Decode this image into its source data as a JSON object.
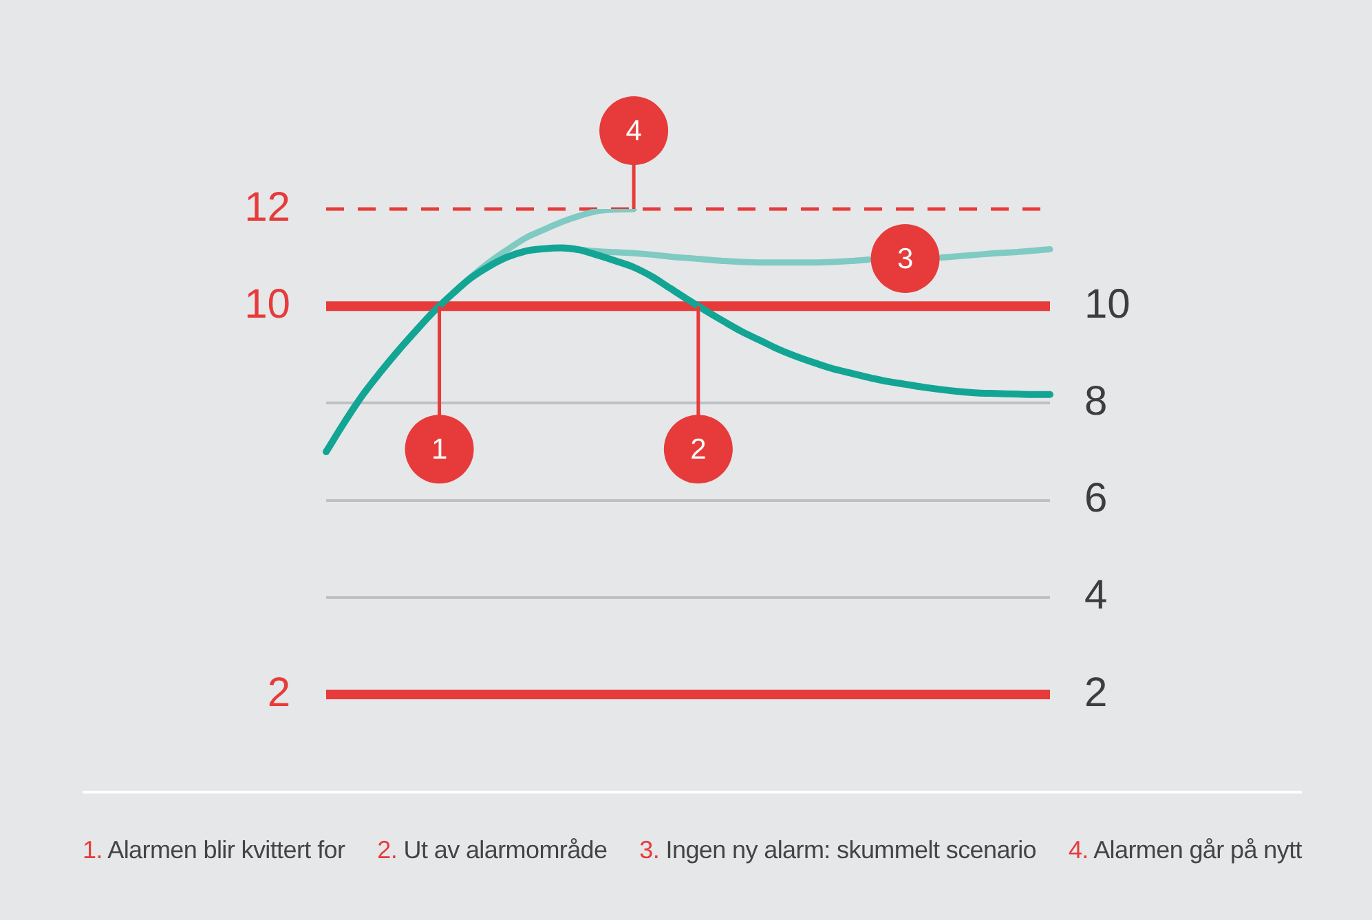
{
  "chart_data": {
    "type": "line",
    "categories": [
      null,
      null,
      null,
      null,
      null,
      null,
      null,
      null,
      null,
      null,
      null,
      null,
      null,
      null,
      null,
      null,
      null,
      null,
      null,
      null,
      null,
      null,
      null,
      null,
      null,
      null,
      null,
      null,
      null,
      null,
      null,
      null,
      null,
      null,
      null,
      null,
      null,
      null,
      null,
      null,
      null
    ],
    "series": [
      {
        "color": "#12a594",
        "values": [
          7.0,
          7.6,
          8.16,
          8.64,
          9.09,
          9.51,
          9.91,
          10.26,
          10.58,
          10.82,
          11.01,
          11.13,
          11.18,
          11.2,
          11.16,
          11.05,
          10.93,
          10.8,
          10.61,
          10.37,
          10.13,
          9.9,
          9.68,
          9.47,
          9.29,
          9.11,
          8.96,
          8.83,
          8.71,
          8.62,
          8.53,
          8.45,
          8.39,
          8.33,
          8.28,
          8.24,
          8.21,
          8.2,
          8.19,
          8.18,
          8.18
        ]
      },
      {
        "color": "#7fcac3",
        "values": [
          null,
          null,
          null,
          null,
          null,
          null,
          null,
          10.26,
          10.6,
          10.9,
          11.16,
          11.4,
          11.57,
          11.73,
          11.86,
          11.96,
          11.99,
          12,
          null,
          null,
          null,
          null,
          null,
          null,
          null,
          null,
          null,
          null,
          null,
          null,
          null,
          null,
          null,
          null,
          null,
          null,
          null,
          null,
          null,
          null,
          null
        ]
      },
      {
        "color": "#7fcac3",
        "values": [
          null,
          null,
          null,
          null,
          null,
          null,
          null,
          null,
          null,
          null,
          null,
          null,
          null,
          11.2,
          11.16,
          11.13,
          11.11,
          11.09,
          11.06,
          11.02,
          10.99,
          10.96,
          10.93,
          10.91,
          10.9,
          10.9,
          10.9,
          10.9,
          10.91,
          10.93,
          10.96,
          null,
          null,
          null,
          11.0,
          11.03,
          11.06,
          11.09,
          11.11,
          11.14,
          11.17
        ]
      }
    ],
    "ylim": [
      2,
      12
    ],
    "yticks": [
      2,
      4,
      6,
      8,
      10
    ],
    "tick_labels": "y",
    "grid": "y",
    "ref_lines": [
      {
        "axis": "y",
        "value": 2,
        "label": "2",
        "color": "#e63b3a"
      },
      {
        "axis": "y",
        "value": 10,
        "label": "10",
        "color": "#e63b3a"
      },
      {
        "axis": "y",
        "value": 12,
        "label": "12",
        "color": "#e63b3a",
        "line_style": "dashed"
      }
    ],
    "annotations": [
      "1. Alarmen blir kvittert for",
      "2. Ut av alarmområde",
      "3. Ingen ny alarm: skummelt scenario",
      "4. Alarmen går på nytt",
      {
        "text": "1",
        "y": 10
      },
      {
        "text": "2",
        "y": 10
      },
      "3",
      {
        "text": "4",
        "y": 12
      }
    ]
  }
}
